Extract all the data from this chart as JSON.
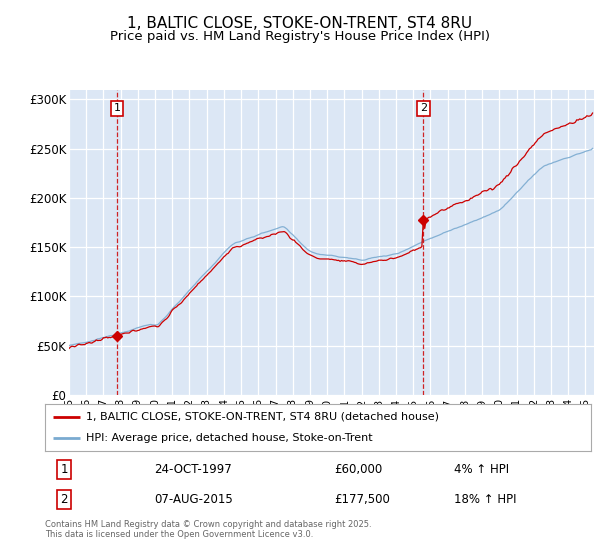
{
  "title": "1, BALTIC CLOSE, STOKE-ON-TRENT, ST4 8RU",
  "subtitle": "Price paid vs. HM Land Registry's House Price Index (HPI)",
  "title_fontsize": 11,
  "subtitle_fontsize": 9.5,
  "bg_color": "#f0f4fb",
  "plot_bg_color": "#dce7f5",
  "grid_color": "#ffffff",
  "red_color": "#cc0000",
  "blue_color": "#7aaad0",
  "marker1_year": 1997.79,
  "marker2_year": 2015.58,
  "sale1_date": "24-OCT-1997",
  "sale1_price": "£60,000",
  "sale1_pct": "4% ↑ HPI",
  "sale2_date": "07-AUG-2015",
  "sale2_price": "£177,500",
  "sale2_pct": "18% ↑ HPI",
  "ylabel_ticks": [
    "£0",
    "£50K",
    "£100K",
    "£150K",
    "£200K",
    "£250K",
    "£300K"
  ],
  "ylabel_values": [
    0,
    50000,
    100000,
    150000,
    200000,
    250000,
    300000
  ],
  "legend_label_red": "1, BALTIC CLOSE, STOKE-ON-TRENT, ST4 8RU (detached house)",
  "legend_label_blue": "HPI: Average price, detached house, Stoke-on-Trent",
  "footnote": "Contains HM Land Registry data © Crown copyright and database right 2025.\nThis data is licensed under the Open Government Licence v3.0."
}
